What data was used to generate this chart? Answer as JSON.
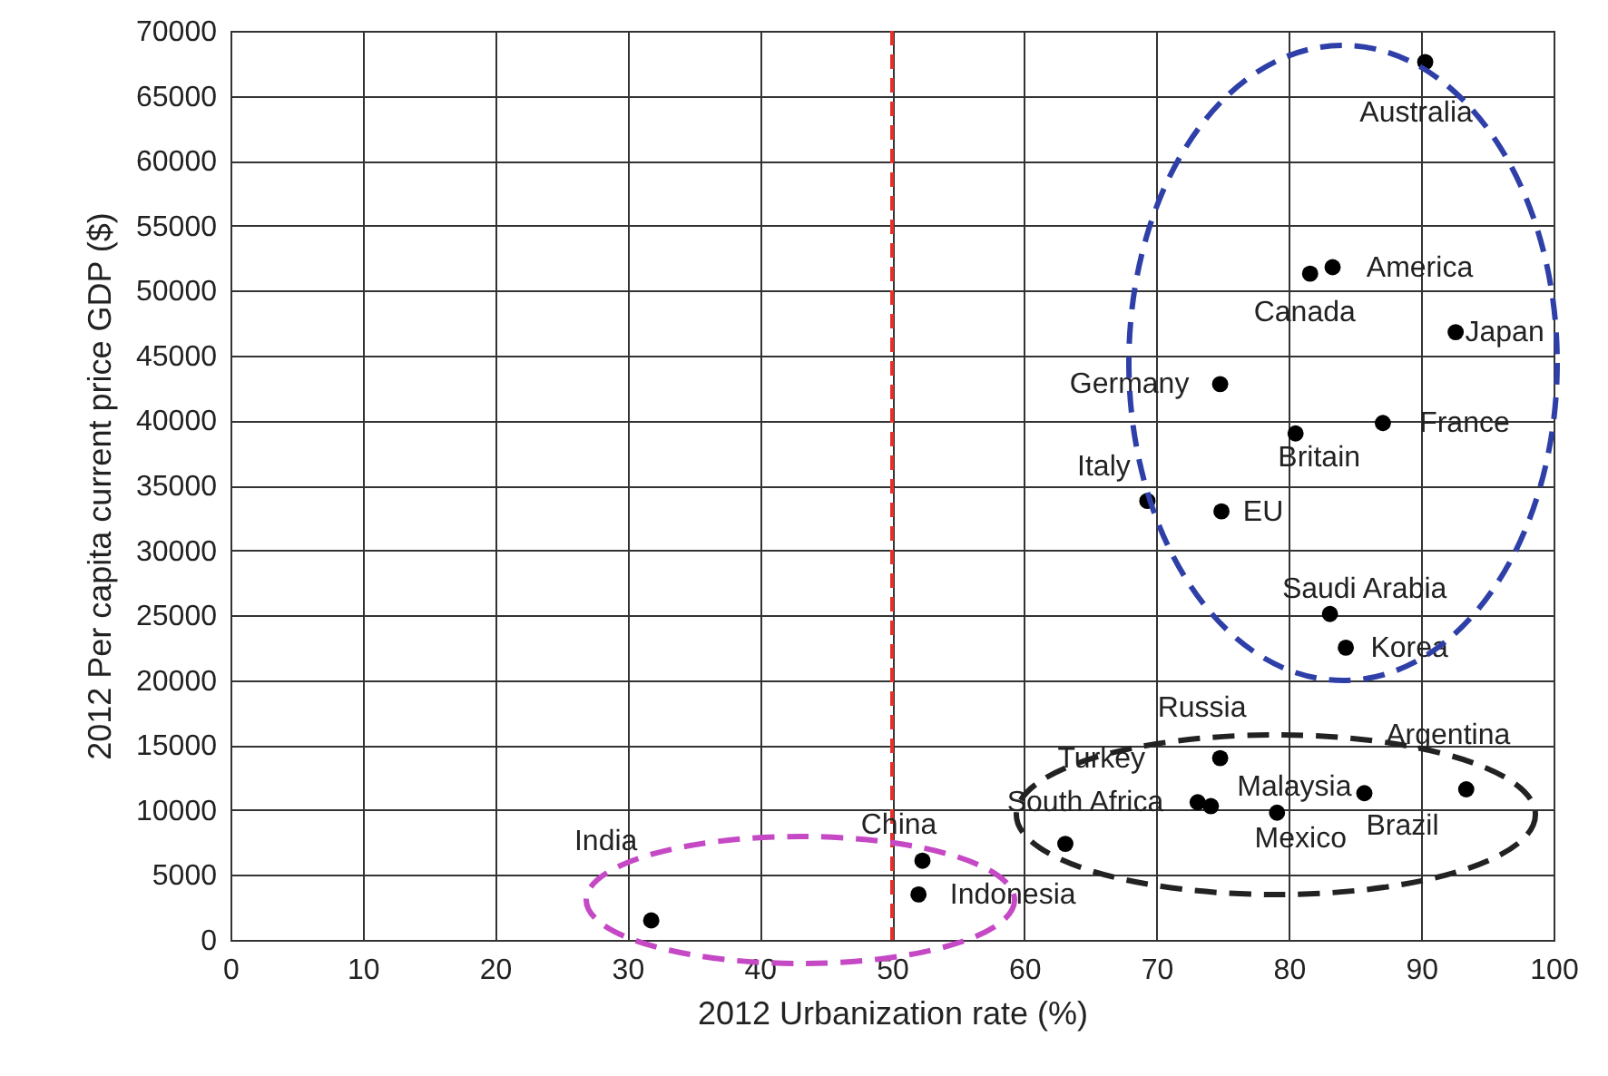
{
  "chart_data": {
    "type": "scatter",
    "xlabel": "2012 Urbanization rate (%)",
    "ylabel": "2012 Per capita current price GDP ($)",
    "x": [
      90.3,
      83.3,
      81.6,
      92.6,
      74.8,
      87.1,
      80.5,
      69.3,
      74.9,
      83.1,
      84.3,
      74.8,
      73.1,
      63.1,
      74.1,
      79.1,
      85.7,
      93.4,
      52.3,
      52.0,
      31.8
    ],
    "values": [
      67600,
      51800,
      51300,
      46800,
      42800,
      39800,
      39000,
      33800,
      33000,
      25100,
      22500,
      14000,
      10600,
      7400,
      10300,
      9800,
      11300,
      11600,
      6100,
      3500,
      1500
    ],
    "color": "#000000",
    "marker": "circle",
    "grid": true,
    "xlim": [
      0,
      100
    ],
    "xticks": [
      0,
      10,
      20,
      30,
      40,
      50,
      60,
      70,
      80,
      90,
      100
    ],
    "ylim": [
      0,
      70000
    ],
    "yticks": [
      0,
      5000,
      10000,
      15000,
      20000,
      25000,
      30000,
      35000,
      40000,
      45000,
      50000,
      55000,
      60000,
      65000,
      70000
    ],
    "ref_lines": [
      {
        "axis": "x",
        "value": 50,
        "color": "#e8302a",
        "line_style": "dashed"
      }
    ],
    "annotations": [
      {
        "text": "Australia",
        "x": 90.3,
        "y": 67600
      },
      {
        "text": "America",
        "x": 83.3,
        "y": 51800
      },
      {
        "text": "Canada",
        "x": 81.6,
        "y": 51300
      },
      {
        "text": "Japan",
        "x": 92.6,
        "y": 46800
      },
      {
        "text": "Germany",
        "x": 74.8,
        "y": 42800
      },
      {
        "text": "France",
        "x": 87.1,
        "y": 39800
      },
      {
        "text": "Britain",
        "x": 80.5,
        "y": 39000
      },
      {
        "text": "Italy",
        "x": 69.3,
        "y": 33800
      },
      {
        "text": "EU",
        "x": 74.9,
        "y": 33000
      },
      {
        "text": "Saudi Arabia",
        "x": 83.1,
        "y": 25100
      },
      {
        "text": "Korea",
        "x": 84.3,
        "y": 22500
      },
      {
        "text": "Russia",
        "x": 74.8,
        "y": 14000
      },
      {
        "text": "Turkey",
        "x": 73.1,
        "y": 10600
      },
      {
        "text": "South Africa",
        "x": 63.1,
        "y": 7400
      },
      {
        "text": "Malaysia",
        "x": 74.1,
        "y": 10300
      },
      {
        "text": "Mexico",
        "x": 79.1,
        "y": 9800
      },
      {
        "text": "Brazil",
        "x": 85.7,
        "y": 11300
      },
      {
        "text": "Argentina",
        "x": 93.4,
        "y": 11600
      },
      {
        "text": "China",
        "x": 52.3,
        "y": 6100
      },
      {
        "text": "Indonesia",
        "x": 52.0,
        "y": 3500
      },
      {
        "text": "India",
        "x": 31.8,
        "y": 1500
      }
    ]
  }
}
